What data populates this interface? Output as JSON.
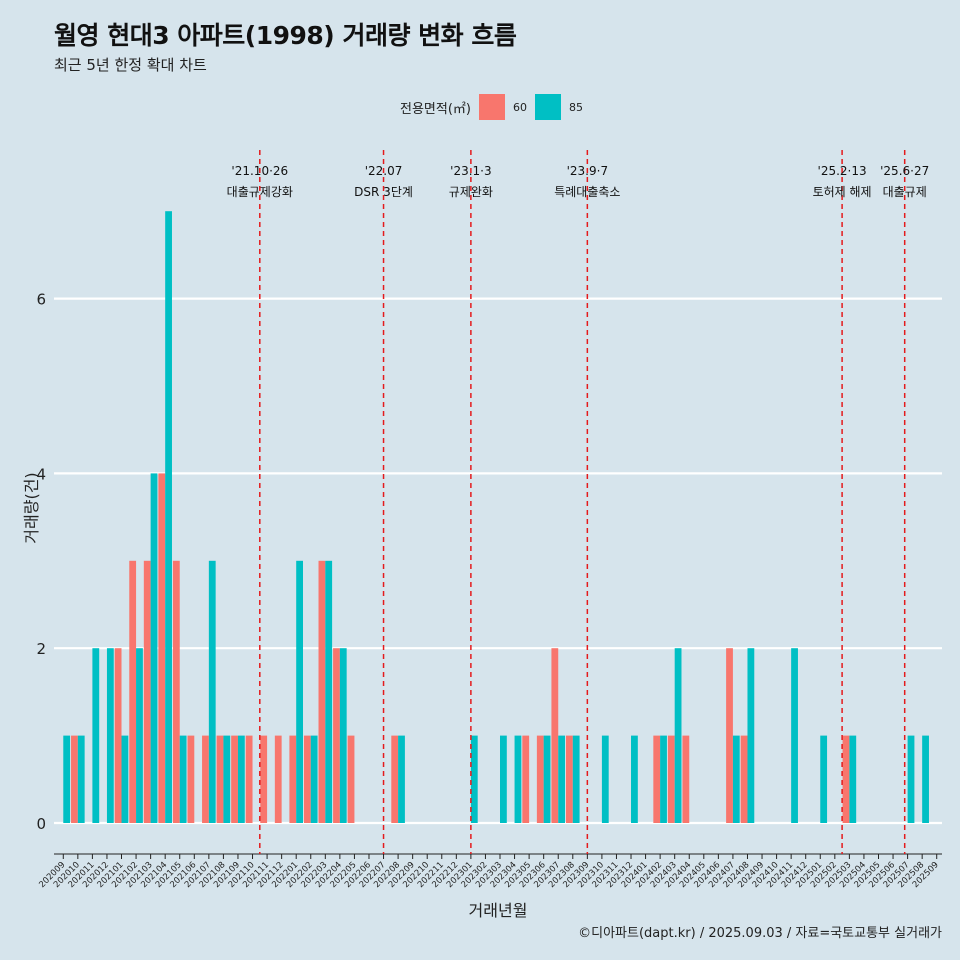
{
  "header": {
    "title": "월영 현대3 아파트(1998) 거래량 변화 흐름",
    "subtitle": "최근 5년 한정 확대 차트"
  },
  "legend": {
    "title": "전용면적(㎡)",
    "items": [
      {
        "label": "60",
        "color": "#f8766d"
      },
      {
        "label": "85",
        "color": "#00bfc4"
      }
    ]
  },
  "caption": "©디아파트(dapt.kr) / 2025.09.03 / 자료=국토교통부 실거래가",
  "chart_data": {
    "type": "bar",
    "bar_layout": "dodge",
    "xlabel": "거래년월",
    "ylabel": "거래량(건)",
    "ylim": [
      0,
      7
    ],
    "yticks": [
      0,
      2,
      4,
      6
    ],
    "grid": "horizontal",
    "legend_position": "top",
    "categories": [
      "202009",
      "202010",
      "202011",
      "202012",
      "202101",
      "202102",
      "202103",
      "202104",
      "202105",
      "202106",
      "202107",
      "202108",
      "202109",
      "202110",
      "202111",
      "202112",
      "202201",
      "202202",
      "202203",
      "202204",
      "202205",
      "202206",
      "202207",
      "202208",
      "202209",
      "202210",
      "202211",
      "202212",
      "202301",
      "202302",
      "202303",
      "202304",
      "202305",
      "202306",
      "202307",
      "202308",
      "202309",
      "202310",
      "202311",
      "202312",
      "202401",
      "202402",
      "202403",
      "202404",
      "202405",
      "202406",
      "202407",
      "202408",
      "202409",
      "202410",
      "202411",
      "202412",
      "202501",
      "202502",
      "202503",
      "202504",
      "202505",
      "202506",
      "202507",
      "202508",
      "202509"
    ],
    "series": [
      {
        "name": "60",
        "color": "#f8766d",
        "values": [
          0,
          1,
          0,
          0,
          2,
          3,
          3,
          4,
          3,
          1,
          1,
          1,
          1,
          1,
          1,
          1,
          1,
          1,
          3,
          2,
          1,
          0,
          0,
          1,
          0,
          0,
          0,
          0,
          0,
          0,
          0,
          0,
          1,
          1,
          2,
          1,
          0,
          0,
          0,
          0,
          0,
          1,
          1,
          1,
          0,
          0,
          2,
          1,
          0,
          0,
          0,
          0,
          0,
          0,
          1,
          0,
          0,
          0,
          0,
          0,
          0
        ]
      },
      {
        "name": "85",
        "color": "#00bfc4",
        "values": [
          1,
          1,
          2,
          2,
          1,
          2,
          4,
          7,
          1,
          0,
          3,
          1,
          1,
          0,
          0,
          0,
          3,
          1,
          3,
          2,
          0,
          0,
          0,
          1,
          0,
          0,
          0,
          0,
          1,
          0,
          1,
          1,
          0,
          1,
          1,
          1,
          0,
          1,
          0,
          1,
          0,
          1,
          2,
          0,
          0,
          0,
          1,
          2,
          0,
          0,
          2,
          0,
          1,
          0,
          1,
          0,
          0,
          0,
          1,
          1,
          0
        ]
      }
    ],
    "annotations": [
      {
        "at": "202110",
        "offset": 0.5,
        "date": "'21.10·26",
        "text": "대출규제강화"
      },
      {
        "at": "202207",
        "offset": 0,
        "date": "'22.07",
        "text": "DSR 3단계"
      },
      {
        "at": "202301",
        "offset": 0,
        "date": "'23.1·3",
        "text": "규제완화"
      },
      {
        "at": "202309",
        "offset": 0,
        "date": "'23.9·7",
        "text": "특례대출축소"
      },
      {
        "at": "202502",
        "offset": 0.5,
        "date": "'25.2·13",
        "text": "토허제 해제"
      },
      {
        "at": "202506",
        "offset": 0.8,
        "date": "'25.6·27",
        "text": "대출규제"
      }
    ]
  }
}
